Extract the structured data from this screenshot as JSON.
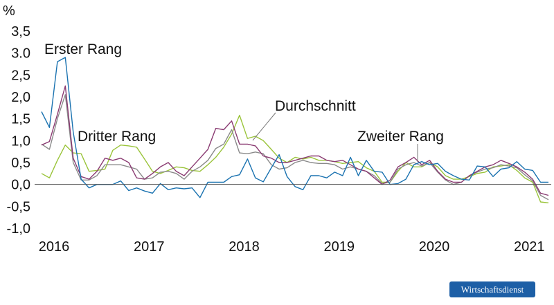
{
  "chart_data": {
    "type": "line",
    "y_unit": "%",
    "ylim": [
      -1.0,
      3.5
    ],
    "yticks": [
      {
        "v": 3.5,
        "label": "3,5"
      },
      {
        "v": 3.0,
        "label": "3.0"
      },
      {
        "v": 2.5,
        "label": "2,5"
      },
      {
        "v": 2.0,
        "label": "2,0"
      },
      {
        "v": 1.5,
        "label": "1,5"
      },
      {
        "v": 1.0,
        "label": "1,0"
      },
      {
        "v": 0.5,
        "label": "0,5"
      },
      {
        "v": 0.0,
        "label": "0,0"
      },
      {
        "v": -0.5,
        "label": "-0,5"
      },
      {
        "v": -1.0,
        "label": "-1,0"
      }
    ],
    "xlim": [
      2016.0,
      2021.333
    ],
    "xticks": [
      {
        "v": 2016.0,
        "label": "2016"
      },
      {
        "v": 2017.0,
        "label": "2017"
      },
      {
        "v": 2018.0,
        "label": "2018"
      },
      {
        "v": 2019.0,
        "label": "2019"
      },
      {
        "v": 2020.0,
        "label": "2020"
      },
      {
        "v": 2021.0,
        "label": "2021"
      }
    ],
    "x": [
      2016.0,
      2016.083,
      2016.167,
      2016.25,
      2016.333,
      2016.417,
      2016.5,
      2016.583,
      2016.667,
      2016.75,
      2016.833,
      2016.917,
      2017.0,
      2017.083,
      2017.167,
      2017.25,
      2017.333,
      2017.417,
      2017.5,
      2017.583,
      2017.667,
      2017.75,
      2017.833,
      2017.917,
      2018.0,
      2018.083,
      2018.167,
      2018.25,
      2018.333,
      2018.417,
      2018.5,
      2018.583,
      2018.667,
      2018.75,
      2018.833,
      2018.917,
      2019.0,
      2019.083,
      2019.167,
      2019.25,
      2019.333,
      2019.417,
      2019.5,
      2019.583,
      2019.667,
      2019.75,
      2019.833,
      2019.917,
      2020.0,
      2020.083,
      2020.167,
      2020.25,
      2020.333,
      2020.417,
      2020.5,
      2020.583,
      2020.667,
      2020.75,
      2020.833,
      2020.917,
      2021.0,
      2021.083,
      2021.167,
      2021.25,
      2021.333
    ],
    "series": [
      {
        "name": "Erster Rang",
        "color": "#1a72b0",
        "values": [
          1.66,
          1.3,
          2.8,
          2.9,
          1.2,
          0.12,
          -0.08,
          0.0,
          0.0,
          0.0,
          0.08,
          -0.14,
          -0.08,
          -0.15,
          -0.2,
          0.02,
          -0.12,
          -0.08,
          -0.1,
          -0.08,
          -0.3,
          0.05,
          0.05,
          0.05,
          0.18,
          0.22,
          0.58,
          0.15,
          0.06,
          0.38,
          0.68,
          0.18,
          -0.05,
          -0.12,
          0.2,
          0.2,
          0.15,
          0.28,
          0.2,
          0.62,
          0.2,
          0.55,
          0.3,
          0.28,
          0.0,
          0.02,
          0.12,
          0.45,
          0.52,
          0.45,
          0.48,
          0.3,
          0.2,
          0.12,
          0.1,
          0.42,
          0.4,
          0.18,
          0.35,
          0.38,
          0.52,
          0.35,
          0.32,
          0.05,
          0.05
        ]
      },
      {
        "name": "Zweiter Rang",
        "color": "#8a3b72",
        "values": [
          0.9,
          0.98,
          1.6,
          2.25,
          0.6,
          0.18,
          0.12,
          0.3,
          0.6,
          0.55,
          0.6,
          0.5,
          0.15,
          0.12,
          0.25,
          0.4,
          0.5,
          0.3,
          0.2,
          0.4,
          0.6,
          0.8,
          1.28,
          1.25,
          1.45,
          0.92,
          0.92,
          0.88,
          0.65,
          0.6,
          0.5,
          0.5,
          0.55,
          0.6,
          0.65,
          0.65,
          0.55,
          0.52,
          0.55,
          0.45,
          0.35,
          0.3,
          0.15,
          0.0,
          0.1,
          0.4,
          0.5,
          0.62,
          0.45,
          0.55,
          0.3,
          0.12,
          0.05,
          0.05,
          0.2,
          0.3,
          0.4,
          0.45,
          0.55,
          0.48,
          0.4,
          0.28,
          0.12,
          -0.2,
          -0.25
        ]
      },
      {
        "name": "Dritter Rang",
        "color": "#9ac43a",
        "values": [
          0.25,
          0.15,
          0.55,
          0.9,
          0.72,
          0.7,
          0.3,
          0.32,
          0.35,
          0.78,
          0.9,
          0.88,
          0.85,
          0.58,
          0.3,
          0.25,
          0.32,
          0.4,
          0.38,
          0.32,
          0.3,
          0.45,
          0.62,
          0.85,
          1.15,
          1.58,
          1.05,
          1.1,
          1.0,
          0.8,
          0.6,
          0.5,
          0.62,
          0.58,
          0.62,
          0.55,
          0.55,
          0.52,
          0.48,
          0.5,
          0.52,
          0.38,
          0.3,
          0.05,
          0.05,
          0.3,
          0.5,
          0.4,
          0.4,
          0.5,
          0.4,
          0.2,
          0.12,
          0.12,
          0.18,
          0.25,
          0.28,
          0.4,
          0.42,
          0.45,
          0.32,
          0.15,
          0.05,
          -0.4,
          -0.42
        ]
      },
      {
        "name": "Durchschnitt",
        "color": "#8a8a8a",
        "values": [
          0.92,
          0.8,
          1.5,
          2.05,
          0.5,
          0.1,
          0.1,
          0.2,
          0.45,
          0.45,
          0.45,
          0.4,
          0.35,
          0.12,
          0.15,
          0.28,
          0.3,
          0.25,
          0.12,
          0.3,
          0.4,
          0.55,
          0.82,
          0.92,
          1.25,
          0.72,
          0.7,
          0.74,
          0.7,
          0.45,
          0.35,
          0.38,
          0.5,
          0.55,
          0.5,
          0.48,
          0.48,
          0.45,
          0.35,
          0.4,
          0.35,
          0.3,
          0.2,
          0.02,
          0.05,
          0.35,
          0.45,
          0.5,
          0.42,
          0.5,
          0.28,
          0.1,
          0.0,
          0.05,
          0.2,
          0.28,
          0.35,
          0.38,
          0.45,
          0.42,
          0.38,
          0.22,
          0.08,
          -0.25,
          -0.35
        ]
      }
    ],
    "annotations": [
      "Erster Rang",
      "Dritter Rang",
      "Durchschnitt",
      "Zweiter Rang"
    ]
  },
  "branding": {
    "publisher": "Wirtschaftsdienst"
  }
}
